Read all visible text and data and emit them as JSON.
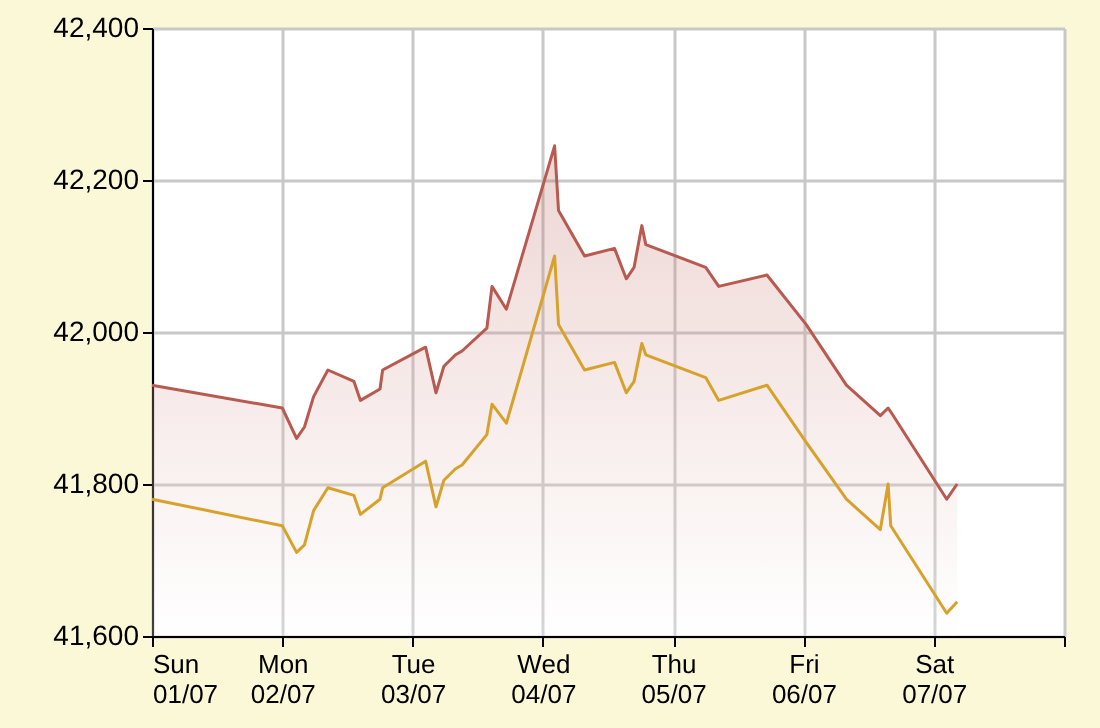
{
  "chart_data": {
    "type": "line",
    "xlim": [
      "--07-01",
      "--07-08"
    ],
    "xticks": [
      {
        "value": "--07-01",
        "label": "Sun 01/07"
      },
      {
        "value": "--07-02",
        "label": "Mon 02/07"
      },
      {
        "value": "--07-03",
        "label": "Tue 03/07"
      },
      {
        "value": "--07-04",
        "label": "Wed 04/07"
      },
      {
        "value": "--07-05",
        "label": "Thu 05/07"
      },
      {
        "value": "--07-06",
        "label": "Fri 06/07"
      },
      {
        "value": "--07-07",
        "label": "Sat 07/07"
      },
      {
        "value": "--07-08",
        "label": null
      }
    ],
    "ylim": [
      41600,
      42400
    ],
    "yticks": [
      {
        "value": 41600,
        "label": "41,600"
      },
      {
        "value": 41800,
        "label": "41,800"
      },
      {
        "value": 42000,
        "label": "42,000"
      },
      {
        "value": 42200,
        "label": "42,200"
      },
      {
        "value": 42400,
        "label": "42,400"
      }
    ],
    "grid": true,
    "marker": "none",
    "line_style": "solid",
    "x": [
      "--07-01T00:00",
      "--07-02T00:00",
      "--07-02T02:38",
      "--07-02T04:05",
      "--07-02T05:46",
      "--07-02T08:24",
      "--07-02T13:12",
      "--07-02T14:24",
      "--07-02T18:00",
      "--07-02T18:29",
      "--07-03T02:24",
      "--07-03T04:19",
      "--07-03T05:46",
      "--07-03T07:55",
      "--07-03T09:07",
      "--07-03T13:41",
      "--07-03T14:38",
      "--07-03T17:17",
      "--07-04T02:10",
      "--07-04T02:53",
      "--07-04T07:41",
      "--07-04T13:12",
      "--07-04T15:22",
      "--07-04T16:48",
      "--07-04T18:14",
      "--07-04T18:58",
      "--07-05T06:00",
      "--07-05T08:24",
      "--07-05T17:17",
      "--07-06T00:29",
      "--07-06T07:55",
      "--07-06T14:10",
      "--07-06T15:36",
      "--07-06T16:05",
      "--07-07T02:24",
      "--07-07T04:19"
    ],
    "series": [
      {
        "type": "area",
        "color": "#b85a50",
        "values": [
          41930,
          41900,
          41860,
          41875,
          41915,
          41950,
          41935,
          41910,
          41925,
          41950,
          41980,
          41920,
          41955,
          41970,
          41975,
          42005,
          42060,
          42030,
          42245,
          42160,
          42100,
          42110,
          42070,
          42085,
          42140,
          42115,
          42085,
          42060,
          42075,
          42010,
          41930,
          41890,
          41900,
          41895,
          41780,
          41800
        ]
      },
      {
        "type": "line",
        "color": "#d6a22c",
        "values": [
          41780,
          41745,
          41710,
          41720,
          41765,
          41795,
          41785,
          41760,
          41780,
          41795,
          41830,
          41770,
          41805,
          41820,
          41825,
          41865,
          41905,
          41880,
          42100,
          42010,
          41950,
          41960,
          41920,
          41935,
          41985,
          41970,
          41940,
          41910,
          41930,
          41855,
          41780,
          41740,
          41800,
          41745,
          41630,
          41645
        ]
      }
    ]
  }
}
